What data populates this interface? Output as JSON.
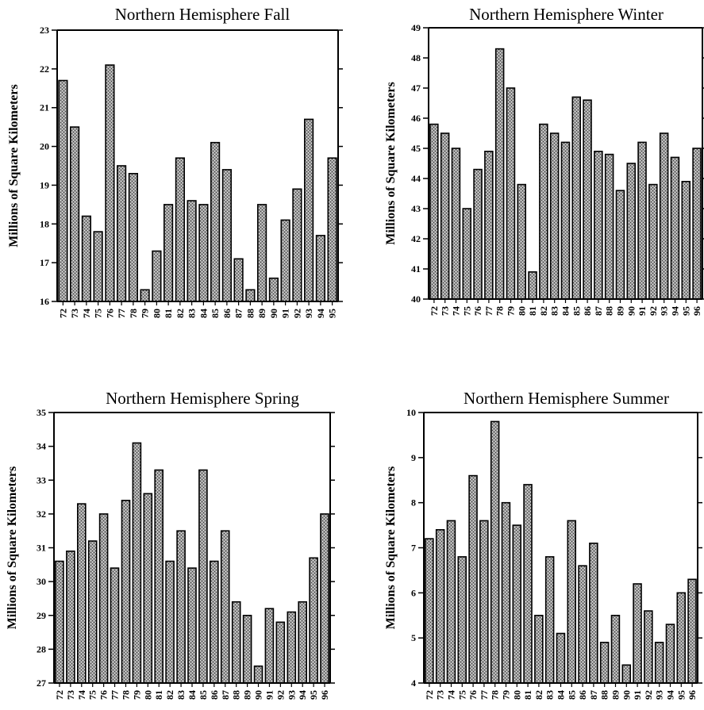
{
  "chart_data": [
    {
      "type": "bar",
      "title": "Northern Hemisphere Fall",
      "ylabel": "Millions of Square Kilometers",
      "ylim": [
        16,
        23
      ],
      "yticks": [
        16,
        17,
        18,
        19,
        20,
        21,
        22,
        23
      ],
      "categories": [
        "72",
        "73",
        "74",
        "75",
        "76",
        "77",
        "78",
        "79",
        "80",
        "81",
        "82",
        "83",
        "84",
        "85",
        "86",
        "87",
        "88",
        "89",
        "90",
        "91",
        "92",
        "93",
        "94",
        "95"
      ],
      "values": [
        21.7,
        20.5,
        18.2,
        17.8,
        22.1,
        19.5,
        19.3,
        16.3,
        17.3,
        18.5,
        19.7,
        18.6,
        18.5,
        20.1,
        19.4,
        17.1,
        16.3,
        18.5,
        16.6,
        18.1,
        18.9,
        20.7,
        17.7,
        19.7
      ],
      "grid": false
    },
    {
      "type": "bar",
      "title": "Northern Hemisphere Winter",
      "ylabel": "Millions of Square Kilometers",
      "ylim": [
        40,
        49
      ],
      "yticks": [
        40,
        41,
        42,
        43,
        44,
        45,
        46,
        47,
        48,
        49
      ],
      "categories": [
        "72",
        "73",
        "74",
        "75",
        "76",
        "77",
        "78",
        "79",
        "80",
        "81",
        "82",
        "83",
        "84",
        "85",
        "86",
        "87",
        "88",
        "89",
        "90",
        "91",
        "92",
        "93",
        "94",
        "95",
        "96"
      ],
      "values": [
        45.8,
        45.5,
        45.0,
        43.0,
        44.3,
        44.9,
        48.3,
        47.0,
        43.8,
        40.9,
        45.8,
        45.5,
        45.2,
        46.7,
        46.6,
        44.9,
        44.8,
        43.6,
        44.5,
        45.2,
        43.8,
        45.5,
        44.7,
        43.9,
        45.0
      ],
      "grid": false
    },
    {
      "type": "bar",
      "title": "Northern Hemisphere Spring",
      "ylabel": "Millions of Square Kilometers",
      "ylim": [
        27,
        35
      ],
      "yticks": [
        27,
        28,
        29,
        30,
        31,
        32,
        33,
        34,
        35
      ],
      "categories": [
        "72",
        "73",
        "74",
        "75",
        "76",
        "77",
        "78",
        "79",
        "80",
        "81",
        "82",
        "83",
        "84",
        "85",
        "86",
        "87",
        "88",
        "89",
        "90",
        "91",
        "92",
        "93",
        "94",
        "95",
        "96"
      ],
      "values": [
        30.6,
        30.9,
        32.3,
        31.2,
        32.0,
        30.4,
        32.4,
        34.1,
        32.6,
        33.3,
        30.6,
        31.5,
        30.4,
        33.3,
        30.6,
        31.5,
        29.4,
        29.0,
        27.5,
        29.2,
        28.8,
        29.1,
        29.4,
        30.7,
        32.0
      ],
      "grid": false
    },
    {
      "type": "bar",
      "title": "Northern Hemisphere Summer",
      "ylabel": "Millions of Square Kilometers",
      "ylim": [
        4,
        10
      ],
      "yticks": [
        4,
        5,
        6,
        7,
        8,
        9,
        10
      ],
      "categories": [
        "72",
        "73",
        "74",
        "75",
        "76",
        "77",
        "78",
        "79",
        "80",
        "81",
        "82",
        "83",
        "84",
        "85",
        "86",
        "87",
        "88",
        "89",
        "90",
        "91",
        "92",
        "93",
        "94",
        "95",
        "96"
      ],
      "values": [
        7.2,
        7.4,
        7.6,
        6.8,
        8.6,
        7.6,
        9.8,
        8.0,
        7.5,
        8.4,
        5.5,
        6.8,
        5.1,
        7.6,
        6.6,
        7.1,
        4.9,
        5.5,
        4.4,
        6.2,
        5.6,
        4.9,
        5.3,
        6.0,
        6.3
      ],
      "grid": false
    }
  ]
}
